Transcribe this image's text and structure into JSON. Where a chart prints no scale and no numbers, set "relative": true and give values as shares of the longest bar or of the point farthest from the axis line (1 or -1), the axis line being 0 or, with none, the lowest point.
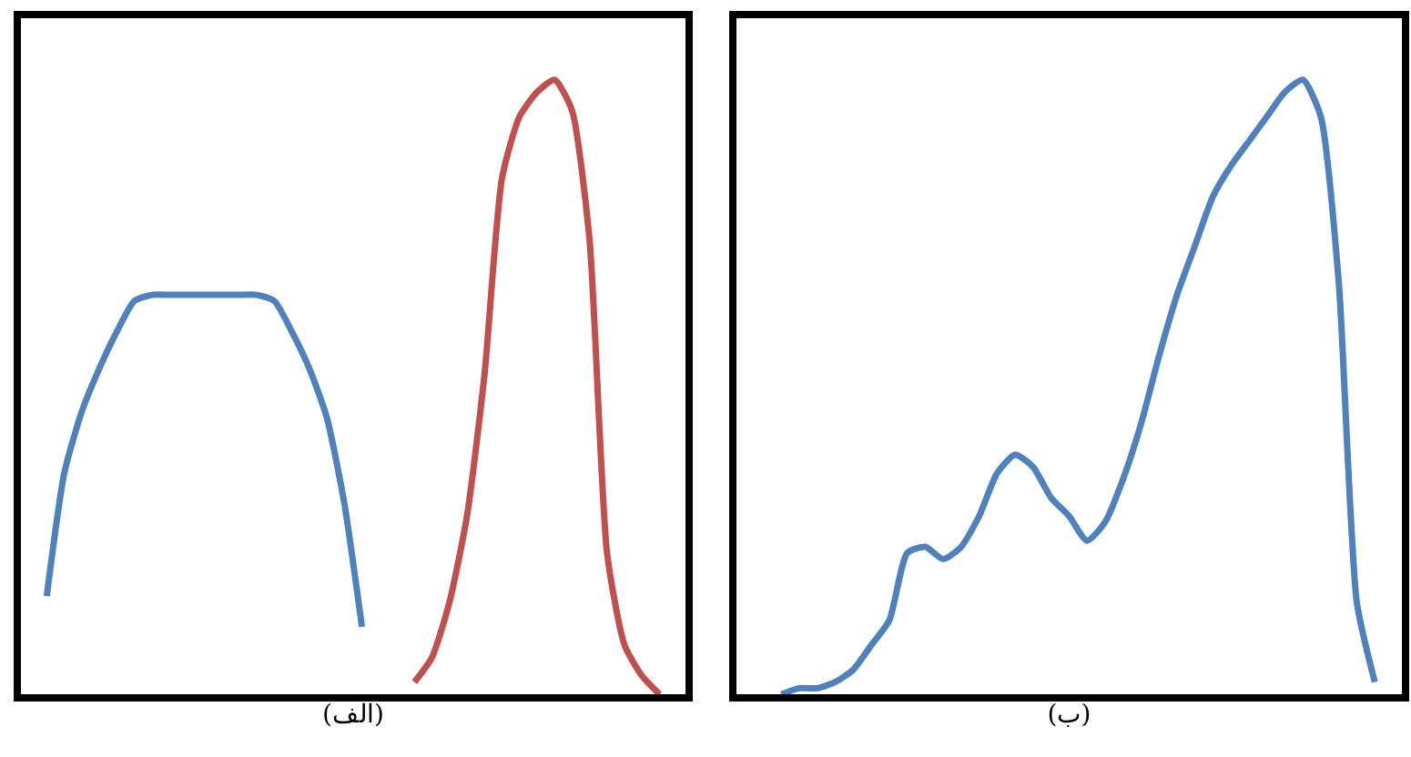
{
  "chart_data": [
    {
      "type": "line",
      "relative": true,
      "xlabel": "(الف)",
      "tick_labels": false,
      "categories": [
        null,
        null,
        null,
        null,
        null,
        null,
        null,
        null,
        null,
        null,
        null,
        null,
        null,
        null,
        null,
        null,
        null,
        null,
        null,
        null,
        null,
        null,
        null,
        null,
        null,
        null,
        null,
        null,
        null,
        null,
        null,
        null,
        null,
        null,
        null,
        null,
        null,
        null
      ],
      "series": [
        {
          "color": "#4f81bd",
          "values": [
            null,
            0.16,
            0.36,
            0.46,
            0.53,
            0.59,
            0.64,
            0.65,
            0.65,
            0.65,
            0.65,
            0.65,
            0.65,
            0.65,
            0.64,
            0.59,
            0.53,
            0.45,
            0.31,
            0.11,
            null,
            null,
            null,
            null,
            null,
            null,
            null,
            null,
            null,
            null,
            null,
            null,
            null,
            null,
            null,
            null,
            null,
            null
          ]
        },
        {
          "color": "#c0504d",
          "values": [
            null,
            null,
            null,
            null,
            null,
            null,
            null,
            null,
            null,
            null,
            null,
            null,
            null,
            null,
            null,
            null,
            null,
            null,
            null,
            null,
            null,
            null,
            0.02,
            0.06,
            0.15,
            0.29,
            0.52,
            0.84,
            0.94,
            0.98,
            1.0,
            0.95,
            0.74,
            0.23,
            0.08,
            0.03,
            0,
            null
          ]
        }
      ]
    },
    {
      "type": "line",
      "relative": true,
      "xlabel": "(ب)",
      "tick_labels": false,
      "categories": [
        null,
        null,
        null,
        null,
        null,
        null,
        null,
        null,
        null,
        null,
        null,
        null,
        null,
        null,
        null,
        null,
        null,
        null,
        null,
        null,
        null,
        null,
        null,
        null,
        null,
        null,
        null,
        null,
        null,
        null,
        null,
        null,
        null,
        null,
        null,
        null,
        null
      ],
      "series": [
        {
          "color": "#4f81bd",
          "values": [
            null,
            null,
            0,
            0.01,
            0.01,
            0.02,
            0.04,
            0.08,
            0.12,
            0.23,
            0.24,
            0.22,
            0.24,
            0.29,
            0.36,
            0.39,
            0.37,
            0.32,
            0.29,
            0.25,
            0.28,
            0.35,
            0.44,
            0.55,
            0.65,
            0.73,
            0.81,
            0.86,
            0.9,
            0.94,
            0.98,
            1.0,
            0.94,
            0.67,
            0.15,
            0.02,
            null
          ]
        }
      ]
    }
  ]
}
